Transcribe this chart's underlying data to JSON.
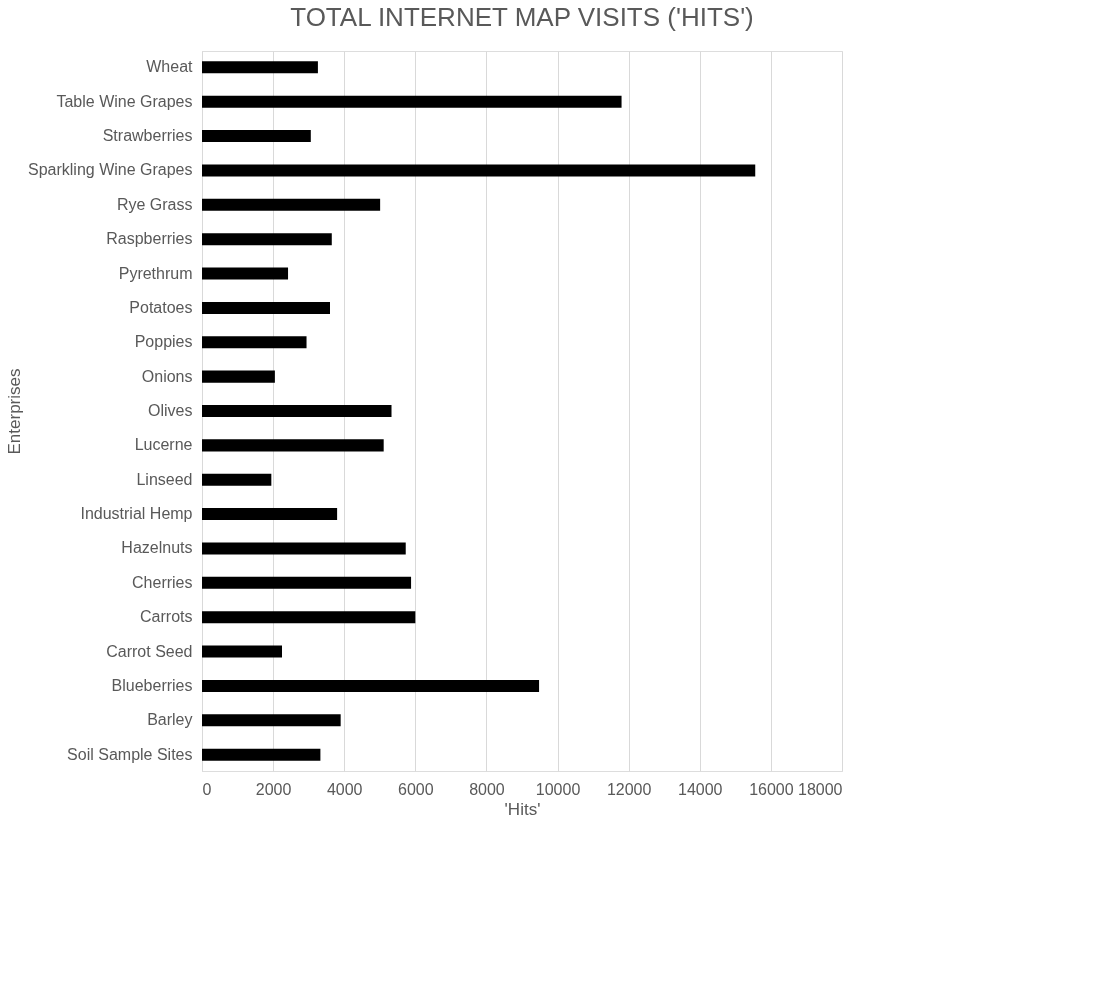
{
  "chart_data": {
    "type": "bar",
    "orientation": "horizontal",
    "title": "TOTAL INTERNET MAP VISITS ('HITS')",
    "xlabel": "'Hits'",
    "ylabel": "Enterprises",
    "categories": [
      "Wheat",
      "Table Wine Grapes",
      "Strawberries",
      "Sparkling Wine Grapes",
      "Rye Grass",
      "Raspberries",
      "Pyrethrum",
      "Potatoes",
      "Poppies",
      "Onions",
      "Olives",
      "Lucerne",
      "Linseed",
      "Industrial Hemp",
      "Hazelnuts",
      "Cherries",
      "Carrots",
      "Carrot Seed",
      "Blueberries",
      "Barley",
      "Soil Sample Sites"
    ],
    "values": [
      3260,
      11800,
      3060,
      15560,
      5010,
      3650,
      2420,
      3600,
      2940,
      2050,
      5330,
      5110,
      1950,
      3800,
      5730,
      5880,
      6000,
      2250,
      9480,
      3900,
      3330
    ],
    "color": "#000000",
    "xlim": [
      0,
      18000
    ],
    "xticks": [
      0,
      2000,
      4000,
      6000,
      8000,
      10000,
      12000,
      14000,
      16000,
      18000
    ],
    "grid": "x"
  }
}
